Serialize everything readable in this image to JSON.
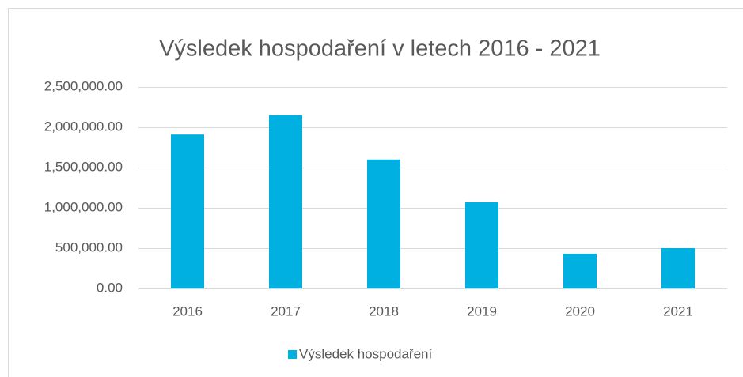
{
  "chart_data": {
    "type": "bar",
    "title": "Výsledek hospodaření v letech 2016 - 2021",
    "categories": [
      "2016",
      "2017",
      "2018",
      "2019",
      "2020",
      "2021"
    ],
    "series": [
      {
        "name": "Výsledek hospodaření",
        "color": "#00b0e0",
        "values": [
          1910000,
          2150000,
          1600000,
          1070000,
          430000,
          500000
        ]
      }
    ],
    "ylim": [
      0,
      2500000
    ],
    "yticks": [
      {
        "value": 0,
        "label": "0.00"
      },
      {
        "value": 500000,
        "label": "500,000.00"
      },
      {
        "value": 1000000,
        "label": "1,000,000.00"
      },
      {
        "value": 1500000,
        "label": "1,500,000.00"
      },
      {
        "value": 2000000,
        "label": "2,000,000.00"
      },
      {
        "value": 2500000,
        "label": "2,500,000.00"
      }
    ],
    "grid": true,
    "legend": "bottom"
  }
}
